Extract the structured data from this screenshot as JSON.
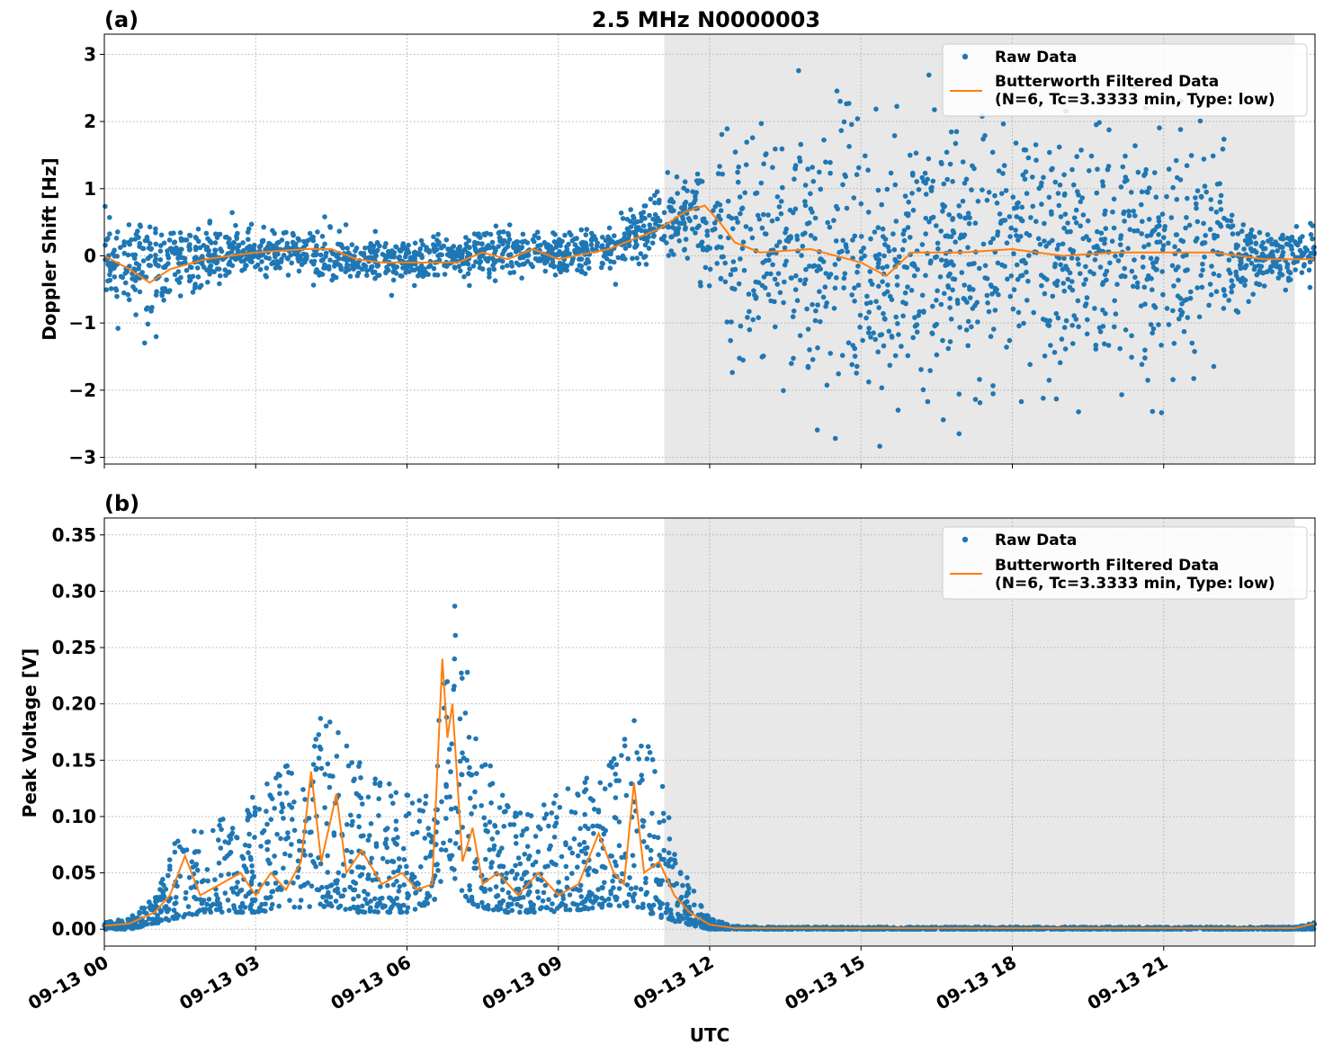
{
  "figure": {
    "title": "2.5 MHz N0000003",
    "xlabel": "UTC"
  },
  "chart_data": [
    {
      "type": "scatter",
      "panel_label": "(a)",
      "title": "2.5 MHz N0000003",
      "xlabel": "",
      "ylabel": "Doppler Shift [Hz]",
      "x_unit": "hours since 09-13 00 UTC",
      "xlim": [
        0,
        24
      ],
      "ylim": [
        -3.1,
        3.3
      ],
      "yticks": [
        3,
        2,
        1,
        0,
        -1,
        -2,
        -3
      ],
      "ytick_labels": [
        "3",
        "2",
        "1",
        "0",
        "−1",
        "−2",
        "−3"
      ],
      "xticks": [
        0,
        3,
        6,
        9,
        12,
        15,
        18,
        21
      ],
      "grid": true,
      "shaded_region": [
        11.1,
        23.6
      ],
      "legend_position": "top-right",
      "series": [
        {
          "name": "Raw Data",
          "kind": "points",
          "color": "#1f77b4",
          "envelope_hours": [
            0,
            1,
            2,
            3,
            4,
            5,
            6,
            7,
            8,
            9,
            10,
            11,
            11.5,
            12,
            12.5,
            13,
            14,
            15,
            16,
            17,
            18,
            19,
            20,
            21,
            22,
            22.5,
            23,
            24
          ],
          "center": [
            0,
            -0.2,
            0,
            0.05,
            0.05,
            -0.05,
            -0.1,
            -0.05,
            0.1,
            0,
            0.1,
            0.5,
            0.6,
            0.5,
            0.1,
            0,
            0,
            -0.1,
            0,
            0.05,
            0,
            0.05,
            0,
            0.05,
            0.05,
            -0.05,
            0,
            0
          ],
          "spread": [
            0.6,
            0.8,
            0.5,
            0.4,
            0.4,
            0.4,
            0.3,
            0.4,
            0.4,
            0.3,
            0.4,
            0.6,
            0.6,
            1.0,
            1.7,
            1.8,
            2.0,
            2.1,
            2.1,
            2.1,
            2.0,
            2.0,
            2.0,
            2.0,
            1.8,
            0.6,
            0.5,
            0.5
          ]
        },
        {
          "name": "Butterworth Filtered Data\n(N=6, Tc=3.3333 min, Type: low)",
          "kind": "line",
          "color": "#ff7f0e",
          "x": [
            0,
            0.5,
            0.9,
            1.3,
            2,
            3,
            4,
            4.5,
            5,
            5.5,
            6,
            7,
            7.5,
            8,
            8.5,
            9,
            10,
            10.5,
            11,
            11.5,
            11.9,
            12.2,
            12.5,
            13,
            14,
            15,
            15.5,
            16,
            17,
            18,
            19,
            20,
            21,
            22,
            22.5,
            23,
            24
          ],
          "y": [
            0,
            -0.2,
            -0.4,
            -0.2,
            -0.05,
            0.05,
            0.1,
            0.1,
            -0.05,
            -0.1,
            -0.1,
            -0.1,
            0.05,
            -0.05,
            0.1,
            -0.05,
            0.1,
            0.25,
            0.4,
            0.65,
            0.75,
            0.5,
            0.2,
            0.05,
            0.1,
            -0.1,
            -0.3,
            0.05,
            0.05,
            0.1,
            0,
            0.05,
            0.05,
            0.05,
            0,
            -0.05,
            -0.05
          ]
        }
      ]
    },
    {
      "type": "scatter",
      "panel_label": "(b)",
      "title": "",
      "xlabel": "UTC",
      "ylabel": "Peak Voltage [V]",
      "x_unit": "hours since 09-13 00 UTC",
      "xlim": [
        0,
        24
      ],
      "ylim": [
        -0.015,
        0.365
      ],
      "yticks": [
        0.35,
        0.3,
        0.25,
        0.2,
        0.15,
        0.1,
        0.05,
        0.0
      ],
      "ytick_labels": [
        "0.35",
        "0.30",
        "0.25",
        "0.20",
        "0.15",
        "0.10",
        "0.05",
        "0.00"
      ],
      "xticks": [
        0,
        3,
        6,
        9,
        12,
        15,
        18,
        21
      ],
      "xtick_labels": [
        "09-13 00",
        "09-13 03",
        "09-13 06",
        "09-13 09",
        "09-13 12",
        "09-13 15",
        "09-13 18",
        "09-13 21"
      ],
      "grid": true,
      "shaded_region": [
        11.1,
        23.6
      ],
      "legend_position": "top-right",
      "series": [
        {
          "name": "Raw Data",
          "kind": "points",
          "color": "#1f77b4",
          "envelope_hours": [
            0,
            0.5,
            1,
            1.5,
            2,
            3,
            4,
            4.5,
            5,
            6,
            6.5,
            6.8,
            7,
            7.3,
            8,
            9,
            10,
            10.5,
            11,
            11.5,
            12,
            12.5,
            13,
            23.6,
            24
          ],
          "upper": [
            0.006,
            0.01,
            0.03,
            0.09,
            0.09,
            0.12,
            0.17,
            0.2,
            0.15,
            0.12,
            0.12,
            0.28,
            0.3,
            0.2,
            0.11,
            0.12,
            0.15,
            0.2,
            0.14,
            0.05,
            0.01,
            0.003,
            0.002,
            0.002,
            0.006
          ],
          "lower": [
            0.0,
            0.0,
            0.005,
            0.01,
            0.015,
            0.015,
            0.02,
            0.02,
            0.015,
            0.015,
            0.02,
            0.06,
            0.04,
            0.02,
            0.015,
            0.015,
            0.02,
            0.02,
            0.01,
            0.005,
            0.0,
            0.0,
            0.0,
            0.0,
            0.0
          ]
        },
        {
          "name": "Butterworth Filtered Data\n(N=6, Tc=3.3333 min, Type: low)",
          "kind": "line",
          "color": "#ff7f0e",
          "x": [
            0,
            0.5,
            1,
            1.3,
            1.6,
            1.9,
            2.3,
            2.7,
            3,
            3.3,
            3.6,
            3.9,
            4.1,
            4.3,
            4.6,
            4.8,
            5.1,
            5.5,
            5.9,
            6.2,
            6.5,
            6.7,
            6.8,
            6.9,
            7.1,
            7.3,
            7.5,
            7.8,
            8.2,
            8.6,
            9,
            9.4,
            9.8,
            10.1,
            10.3,
            10.5,
            10.7,
            11,
            11.3,
            11.6,
            12,
            12.5,
            13,
            23.6,
            24
          ],
          "y": [
            0.003,
            0.005,
            0.015,
            0.03,
            0.065,
            0.03,
            0.04,
            0.05,
            0.03,
            0.05,
            0.035,
            0.06,
            0.14,
            0.06,
            0.12,
            0.05,
            0.07,
            0.04,
            0.05,
            0.035,
            0.04,
            0.24,
            0.17,
            0.2,
            0.06,
            0.09,
            0.04,
            0.05,
            0.03,
            0.05,
            0.03,
            0.04,
            0.085,
            0.05,
            0.04,
            0.13,
            0.05,
            0.06,
            0.03,
            0.015,
            0.004,
            0.001,
            0.001,
            0.001,
            0.005
          ]
        }
      ]
    }
  ]
}
